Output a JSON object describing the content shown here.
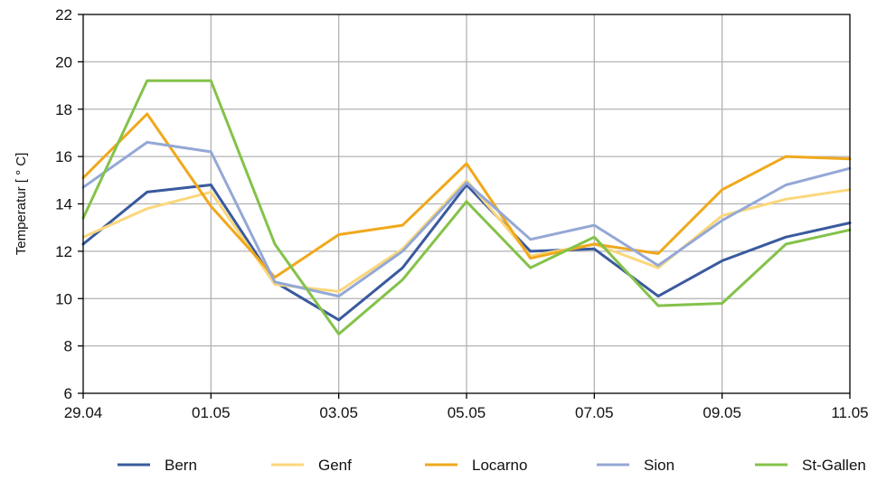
{
  "chart_data": {
    "type": "line",
    "xlabel": "",
    "ylabel": "Temperatur [ ° C]",
    "ylim": [
      6,
      22
    ],
    "yticks": [
      "6",
      "8",
      "10",
      "12",
      "14",
      "16",
      "18",
      "20",
      "22"
    ],
    "x": [
      "29.04",
      "30.04",
      "01.05",
      "02.05",
      "03.05",
      "04.05",
      "05.05",
      "06.05",
      "07.05",
      "08.05",
      "09.05",
      "10.05",
      "11.05"
    ],
    "xticks": [
      "29.04",
      "01.05",
      "03.05",
      "05.05",
      "07.05",
      "09.05",
      "11.05"
    ],
    "grid": true,
    "legend_position": "bottom",
    "series": [
      {
        "name": "Bern",
        "color": "#3a5a9e",
        "values": [
          12.3,
          14.5,
          14.8,
          10.7,
          9.1,
          11.3,
          14.8,
          12.0,
          12.1,
          10.1,
          11.6,
          12.6,
          13.2
        ]
      },
      {
        "name": "Genf",
        "color": "#fad77b",
        "values": [
          12.6,
          13.8,
          14.5,
          10.6,
          10.3,
          12.1,
          15.0,
          11.8,
          12.3,
          11.3,
          13.5,
          14.2,
          14.6
        ]
      },
      {
        "name": "Locarno",
        "color": "#f0a81c",
        "values": [
          15.1,
          17.8,
          13.9,
          10.9,
          12.7,
          13.1,
          15.7,
          11.7,
          12.3,
          11.9,
          14.6,
          16.0,
          15.9
        ]
      },
      {
        "name": "Sion",
        "color": "#94a8d6",
        "values": [
          14.7,
          16.6,
          16.2,
          10.7,
          10.1,
          12.0,
          14.9,
          12.5,
          13.1,
          11.4,
          13.3,
          14.8,
          15.5
        ]
      },
      {
        "name": "St-Gallen",
        "color": "#84c24a",
        "values": [
          13.4,
          19.2,
          19.2,
          12.3,
          8.5,
          10.8,
          14.1,
          11.3,
          12.6,
          9.7,
          9.8,
          12.3,
          12.9
        ]
      }
    ]
  }
}
